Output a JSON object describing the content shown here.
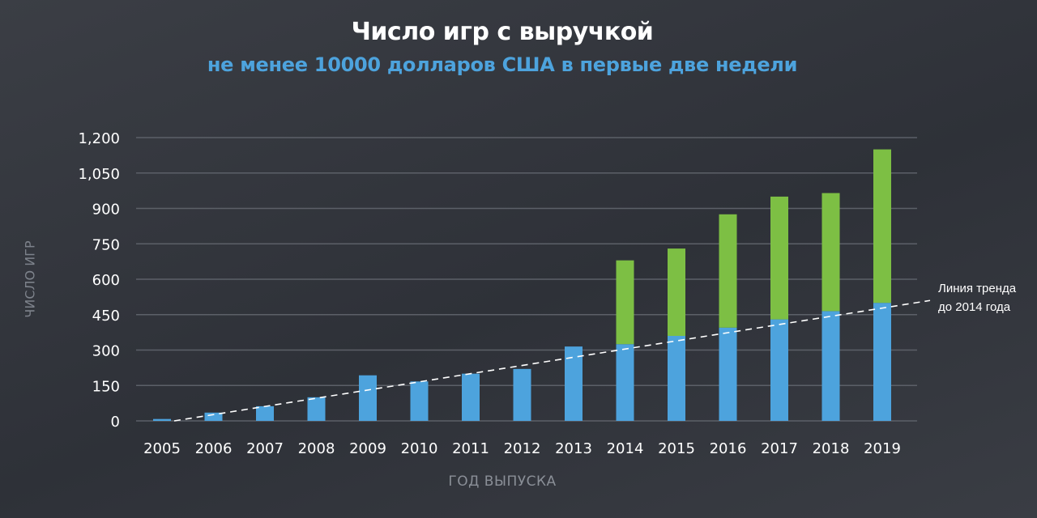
{
  "colors": {
    "base": "#4da3dd",
    "excess": "#7dbf44",
    "grid": "#5c6068",
    "trend": "#ffffff"
  },
  "chart_data": {
    "type": "bar",
    "stacked": true,
    "title": "Число игр с выручкой",
    "subtitle": "не менее 10000 долларов США в первые две недели",
    "xlabel": "ГОД ВЫПУСКА",
    "ylabel": "ЧИСЛО ИГР",
    "ylim": [
      0,
      1200
    ],
    "yticks": [
      0,
      150,
      300,
      450,
      600,
      750,
      900,
      1050,
      1200
    ],
    "ytick_labels": [
      "0",
      "150",
      "300",
      "450",
      "600",
      "750",
      "900",
      "1,050",
      "1,200"
    ],
    "categories": [
      "2005",
      "2006",
      "2007",
      "2008",
      "2009",
      "2010",
      "2011",
      "2012",
      "2013",
      "2014",
      "2015",
      "2016",
      "2017",
      "2018",
      "2019"
    ],
    "series": [
      {
        "color": "#4da3dd",
        "values": [
          8,
          35,
          62,
          100,
          193,
          167,
          200,
          220,
          315,
          325,
          360,
          395,
          430,
          465,
          500
        ]
      },
      {
        "color": "#7dbf44",
        "values": [
          0,
          0,
          0,
          0,
          0,
          0,
          0,
          0,
          0,
          355,
          370,
          480,
          520,
          500,
          650
        ]
      }
    ],
    "trendline": {
      "label_lines": [
        "Линия тренда",
        "до 2014 года"
      ],
      "start": {
        "x": "2005",
        "y": 0
      },
      "end_value": 510,
      "style": "dashed"
    },
    "grid": true,
    "legend": "none"
  }
}
